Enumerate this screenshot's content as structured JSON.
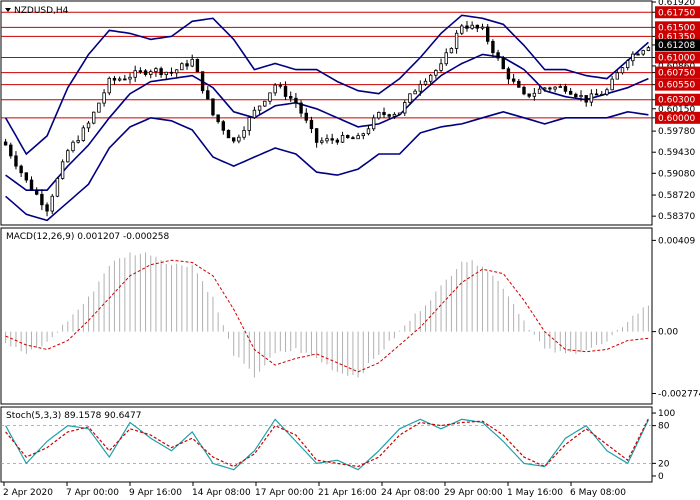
{
  "main": {
    "symbol": "NZDUSD,H4",
    "ylim": [
      0.5824,
      0.6192
    ],
    "y_ticks": [
      "0.61920",
      "0.61750",
      "0.61500",
      "0.61350",
      "0.61208",
      "0.61000",
      "0.60860",
      "0.60750",
      "0.60550",
      "0.60300",
      "0.60150",
      "0.60000",
      "0.59780",
      "0.59430",
      "0.59080",
      "0.58720",
      "0.58370"
    ],
    "levels": [
      "0.61750",
      "0.61500",
      "0.61350",
      "0.61000",
      "0.60750",
      "0.60550",
      "0.60300",
      "0.60000"
    ],
    "current_price": "0.61208",
    "level_color": "#cc0000",
    "band_color": "#000080",
    "candle_color": "#000000"
  },
  "macd": {
    "label": "MACD(12,26,9) 0.001207 -0.000258",
    "ylim": [
      -0.0032,
      0.0046
    ],
    "y_ticks": [
      "0.00409",
      "0.00",
      "-0.002774"
    ],
    "hist_color": "#b0b0b0",
    "signal_color": "#cc0000"
  },
  "stoch": {
    "label": "Stoch(5,3,3) 89.1578 90.6477",
    "ylim": [
      -8,
      108
    ],
    "y_ticks": [
      "100",
      "80",
      "20",
      "0"
    ],
    "main_color": "#20a0a8",
    "signal_color": "#cc0000"
  },
  "x_labels": [
    "2 Apr 2020",
    "7 Apr 00:00",
    "9 Apr 16:00",
    "14 Apr 08:00",
    "17 Apr 00:00",
    "21 Apr 16:00",
    "24 Apr 08:00",
    "29 Apr 00:00",
    "1 May 16:00",
    "6 May 08:00"
  ],
  "chart_data": {
    "type": "candlestick",
    "n_bars": 125,
    "anchor_index": [
      0,
      4,
      8,
      12,
      16,
      20,
      24,
      28,
      32,
      36,
      40,
      44,
      48,
      52,
      56,
      60,
      64,
      68,
      72,
      76,
      80,
      84,
      88,
      92,
      96,
      100,
      104,
      108,
      112,
      116,
      120,
      124
    ],
    "anchor_close": [
      0.5955,
      0.5895,
      0.585,
      0.5945,
      0.599,
      0.606,
      0.607,
      0.608,
      0.6075,
      0.6095,
      0.6005,
      0.596,
      0.601,
      0.6055,
      0.6025,
      0.596,
      0.5965,
      0.5965,
      0.6005,
      0.601,
      0.606,
      0.6085,
      0.6155,
      0.6145,
      0.608,
      0.6035,
      0.605,
      0.605,
      0.603,
      0.6045,
      0.61,
      0.6121
    ],
    "band_upper": [
      0.6,
      0.594,
      0.597,
      0.605,
      0.6105,
      0.6145,
      0.614,
      0.613,
      0.6135,
      0.616,
      0.6165,
      0.613,
      0.608,
      0.609,
      0.608,
      0.608,
      0.606,
      0.6045,
      0.604,
      0.6065,
      0.61,
      0.614,
      0.617,
      0.6165,
      0.6155,
      0.612,
      0.608,
      0.608,
      0.607,
      0.6065,
      0.6095,
      0.6125
    ],
    "band_middle": [
      0.5905,
      0.588,
      0.588,
      0.592,
      0.5955,
      0.6,
      0.604,
      0.606,
      0.6065,
      0.607,
      0.605,
      0.601,
      0.6,
      0.602,
      0.6025,
      0.6015,
      0.6,
      0.5985,
      0.599,
      0.6005,
      0.604,
      0.607,
      0.609,
      0.6105,
      0.61,
      0.608,
      0.6045,
      0.6035,
      0.603,
      0.604,
      0.605,
      0.6065
    ],
    "band_lower": [
      0.587,
      0.584,
      0.583,
      0.586,
      0.589,
      0.595,
      0.5985,
      0.6,
      0.5995,
      0.598,
      0.5935,
      0.592,
      0.5935,
      0.595,
      0.594,
      0.591,
      0.5905,
      0.5915,
      0.594,
      0.594,
      0.5975,
      0.5985,
      0.599,
      0.6,
      0.601,
      0.6,
      0.599,
      0.6,
      0.6,
      0.6,
      0.601,
      0.6005
    ],
    "macd_hist": [
      -0.0005,
      -0.001,
      -0.0005,
      0.0005,
      0.0015,
      0.003,
      0.0035,
      0.0035,
      0.003,
      0.003,
      0.0015,
      -0.001,
      -0.002,
      -0.001,
      -0.0008,
      -0.0012,
      -0.0018,
      -0.002,
      -0.001,
      0.0,
      0.001,
      0.002,
      0.0032,
      0.003,
      0.002,
      0.0005,
      -0.0008,
      -0.001,
      -0.0008,
      -0.0005,
      0.0005,
      0.0012
    ],
    "macd_signal": [
      -0.0002,
      -0.0006,
      -0.0008,
      -0.0004,
      0.0005,
      0.0015,
      0.0025,
      0.003,
      0.0032,
      0.0031,
      0.0025,
      0.001,
      -0.0008,
      -0.0015,
      -0.0012,
      -0.001,
      -0.0014,
      -0.0018,
      -0.0014,
      -0.0006,
      0.0002,
      0.0012,
      0.0022,
      0.0028,
      0.0026,
      0.0014,
      0.0,
      -0.0008,
      -0.0009,
      -0.0008,
      -0.0004,
      -0.0003
    ],
    "stoch_main": [
      80,
      20,
      55,
      80,
      75,
      30,
      85,
      60,
      40,
      70,
      20,
      10,
      40,
      90,
      55,
      20,
      25,
      10,
      40,
      75,
      90,
      75,
      90,
      85,
      55,
      20,
      15,
      60,
      80,
      40,
      20,
      89
    ],
    "stoch_signal": [
      70,
      30,
      45,
      70,
      78,
      40,
      75,
      65,
      45,
      60,
      30,
      15,
      35,
      80,
      65,
      25,
      20,
      15,
      30,
      65,
      85,
      80,
      85,
      87,
      65,
      30,
      15,
      50,
      75,
      50,
      25,
      91
    ]
  }
}
